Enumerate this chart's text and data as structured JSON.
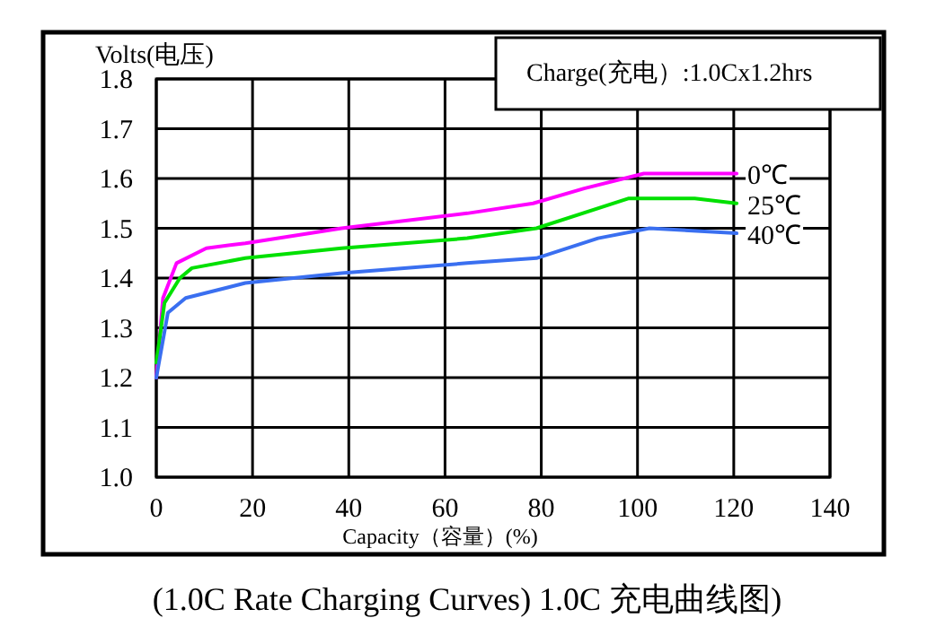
{
  "chart_data": {
    "type": "line",
    "title": "(1.0C Rate Charging Curves) 1.0C 充电曲线图)",
    "xlabel": "Capacity（容量）(%)",
    "ylabel": "Volts(电压)",
    "annotations": [
      "Charge(充电）:1.0Cx1.2hrs"
    ],
    "xlim": [
      0,
      140
    ],
    "xticks": [
      0,
      20,
      40,
      60,
      80,
      100,
      120,
      140
    ],
    "ylim": [
      1.0,
      1.8
    ],
    "yticks": [
      {
        "value": 1.0,
        "label": "1.0"
      },
      {
        "value": 1.1,
        "label": "1.1"
      },
      {
        "value": 1.2,
        "label": "1.2"
      },
      {
        "value": 1.3,
        "label": "1.3"
      },
      {
        "value": 1.4,
        "label": "1.4"
      },
      {
        "value": 1.5,
        "label": "1.5"
      },
      {
        "value": 1.6,
        "label": "1.6"
      },
      {
        "value": 1.7,
        "label": "1.7"
      },
      {
        "value": 1.8,
        "label": "1.8"
      }
    ],
    "grid": true,
    "marker": "none",
    "line_style": "solid",
    "series": [
      {
        "name": "0℃",
        "color": "#ff00ff",
        "x": [
          0,
          1.4,
          4.2,
          10.4,
          18.5,
          38.5,
          64.6,
          78.3,
          88.9,
          101.3,
          120.6
        ],
        "values": [
          1.2,
          1.36,
          1.43,
          1.46,
          1.47,
          1.5,
          1.53,
          1.55,
          1.58,
          1.61,
          1.61
        ]
      },
      {
        "name": "25℃",
        "color": "#00e000",
        "x": [
          0,
          1.7,
          4.9,
          7.4,
          18.5,
          38.5,
          64.6,
          79,
          98.2,
          111.9,
          120.6
        ],
        "values": [
          1.23,
          1.35,
          1.4,
          1.42,
          1.44,
          1.46,
          1.48,
          1.5,
          1.56,
          1.56,
          1.55
        ]
      },
      {
        "name": "40℃",
        "color": "#3a6ff0",
        "x": [
          0,
          2.4,
          6.1,
          18.5,
          38.5,
          64.6,
          79,
          91.8,
          102.5,
          120.6
        ],
        "values": [
          1.2,
          1.33,
          1.36,
          1.39,
          1.41,
          1.43,
          1.44,
          1.48,
          1.5,
          1.49
        ]
      }
    ]
  }
}
